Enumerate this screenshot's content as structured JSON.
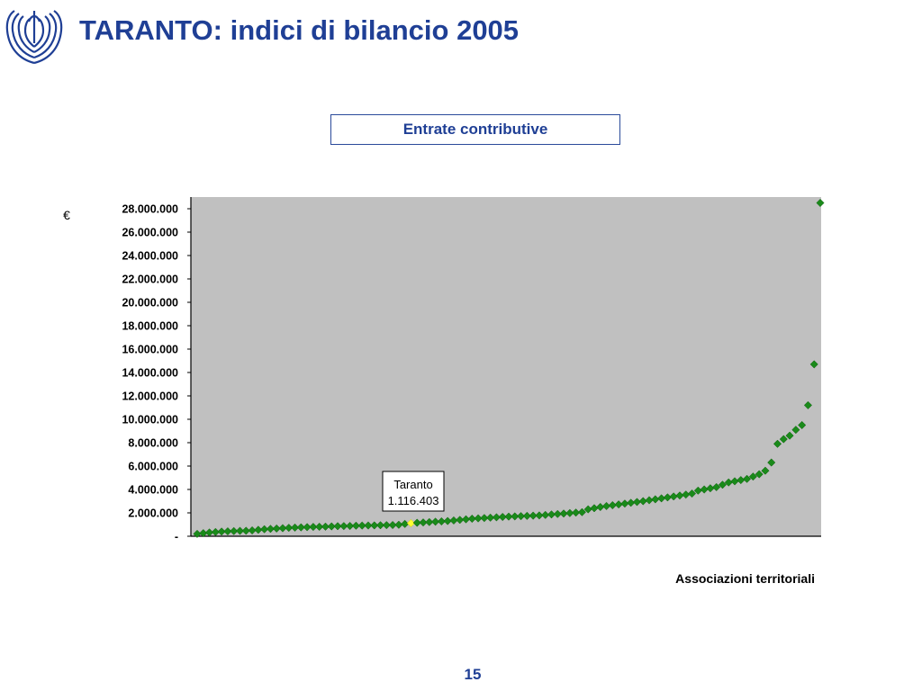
{
  "header": {
    "title": "TARANTO: indici di bilancio 2005"
  },
  "chart_box": {
    "label": "Entrate contributive"
  },
  "footer": {
    "page_number": "15"
  },
  "colors": {
    "accent": "#1f3f95",
    "plot_background": "#c0c0c0",
    "marker": "#1a8a1a",
    "highlight_marker": "#ffff33"
  },
  "chart_data": {
    "type": "scatter",
    "title": "Entrate contributive",
    "ylabel": "€",
    "xlabel": "Associazioni territoriali",
    "ylim": [
      0,
      29000000
    ],
    "yticks": [
      0,
      2000000,
      4000000,
      6000000,
      8000000,
      10000000,
      12000000,
      14000000,
      16000000,
      18000000,
      20000000,
      22000000,
      24000000,
      26000000,
      28000000
    ],
    "ytick_labels": [
      "-",
      "2.000.000",
      "4.000.000",
      "6.000.000",
      "8.000.000",
      "10.000.000",
      "12.000.000",
      "14.000.000",
      "16.000.000",
      "18.000.000",
      "20.000.000",
      "22.000.000",
      "24.000.000",
      "26.000.000",
      "28.000.000"
    ],
    "grid": false,
    "annotation": {
      "label": "Taranto",
      "value_label": "1.116.403",
      "index": 35,
      "value": 1116403
    },
    "values": [
      200000,
      260000,
      320000,
      360000,
      400000,
      420000,
      440000,
      460000,
      470000,
      500000,
      550000,
      600000,
      630000,
      660000,
      690000,
      720000,
      740000,
      760000,
      780000,
      800000,
      810000,
      820000,
      840000,
      860000,
      870000,
      880000,
      900000,
      910000,
      920000,
      930000,
      940000,
      950000,
      960000,
      980000,
      1050000,
      1116403,
      1150000,
      1180000,
      1210000,
      1240000,
      1270000,
      1300000,
      1350000,
      1400000,
      1450000,
      1500000,
      1530000,
      1560000,
      1590000,
      1620000,
      1650000,
      1680000,
      1700000,
      1720000,
      1740000,
      1760000,
      1780000,
      1820000,
      1860000,
      1900000,
      1940000,
      1980000,
      2020000,
      2060000,
      2300000,
      2400000,
      2500000,
      2580000,
      2650000,
      2720000,
      2790000,
      2860000,
      2930000,
      3000000,
      3080000,
      3160000,
      3240000,
      3320000,
      3400000,
      3480000,
      3560000,
      3650000,
      3900000,
      4000000,
      4100000,
      4200000,
      4400000,
      4600000,
      4700000,
      4800000,
      4900000,
      5100000,
      5300000,
      5600000,
      6300000,
      7900000,
      8300000,
      8600000,
      9100000,
      9500000,
      11200000,
      14700000,
      28500000
    ]
  }
}
